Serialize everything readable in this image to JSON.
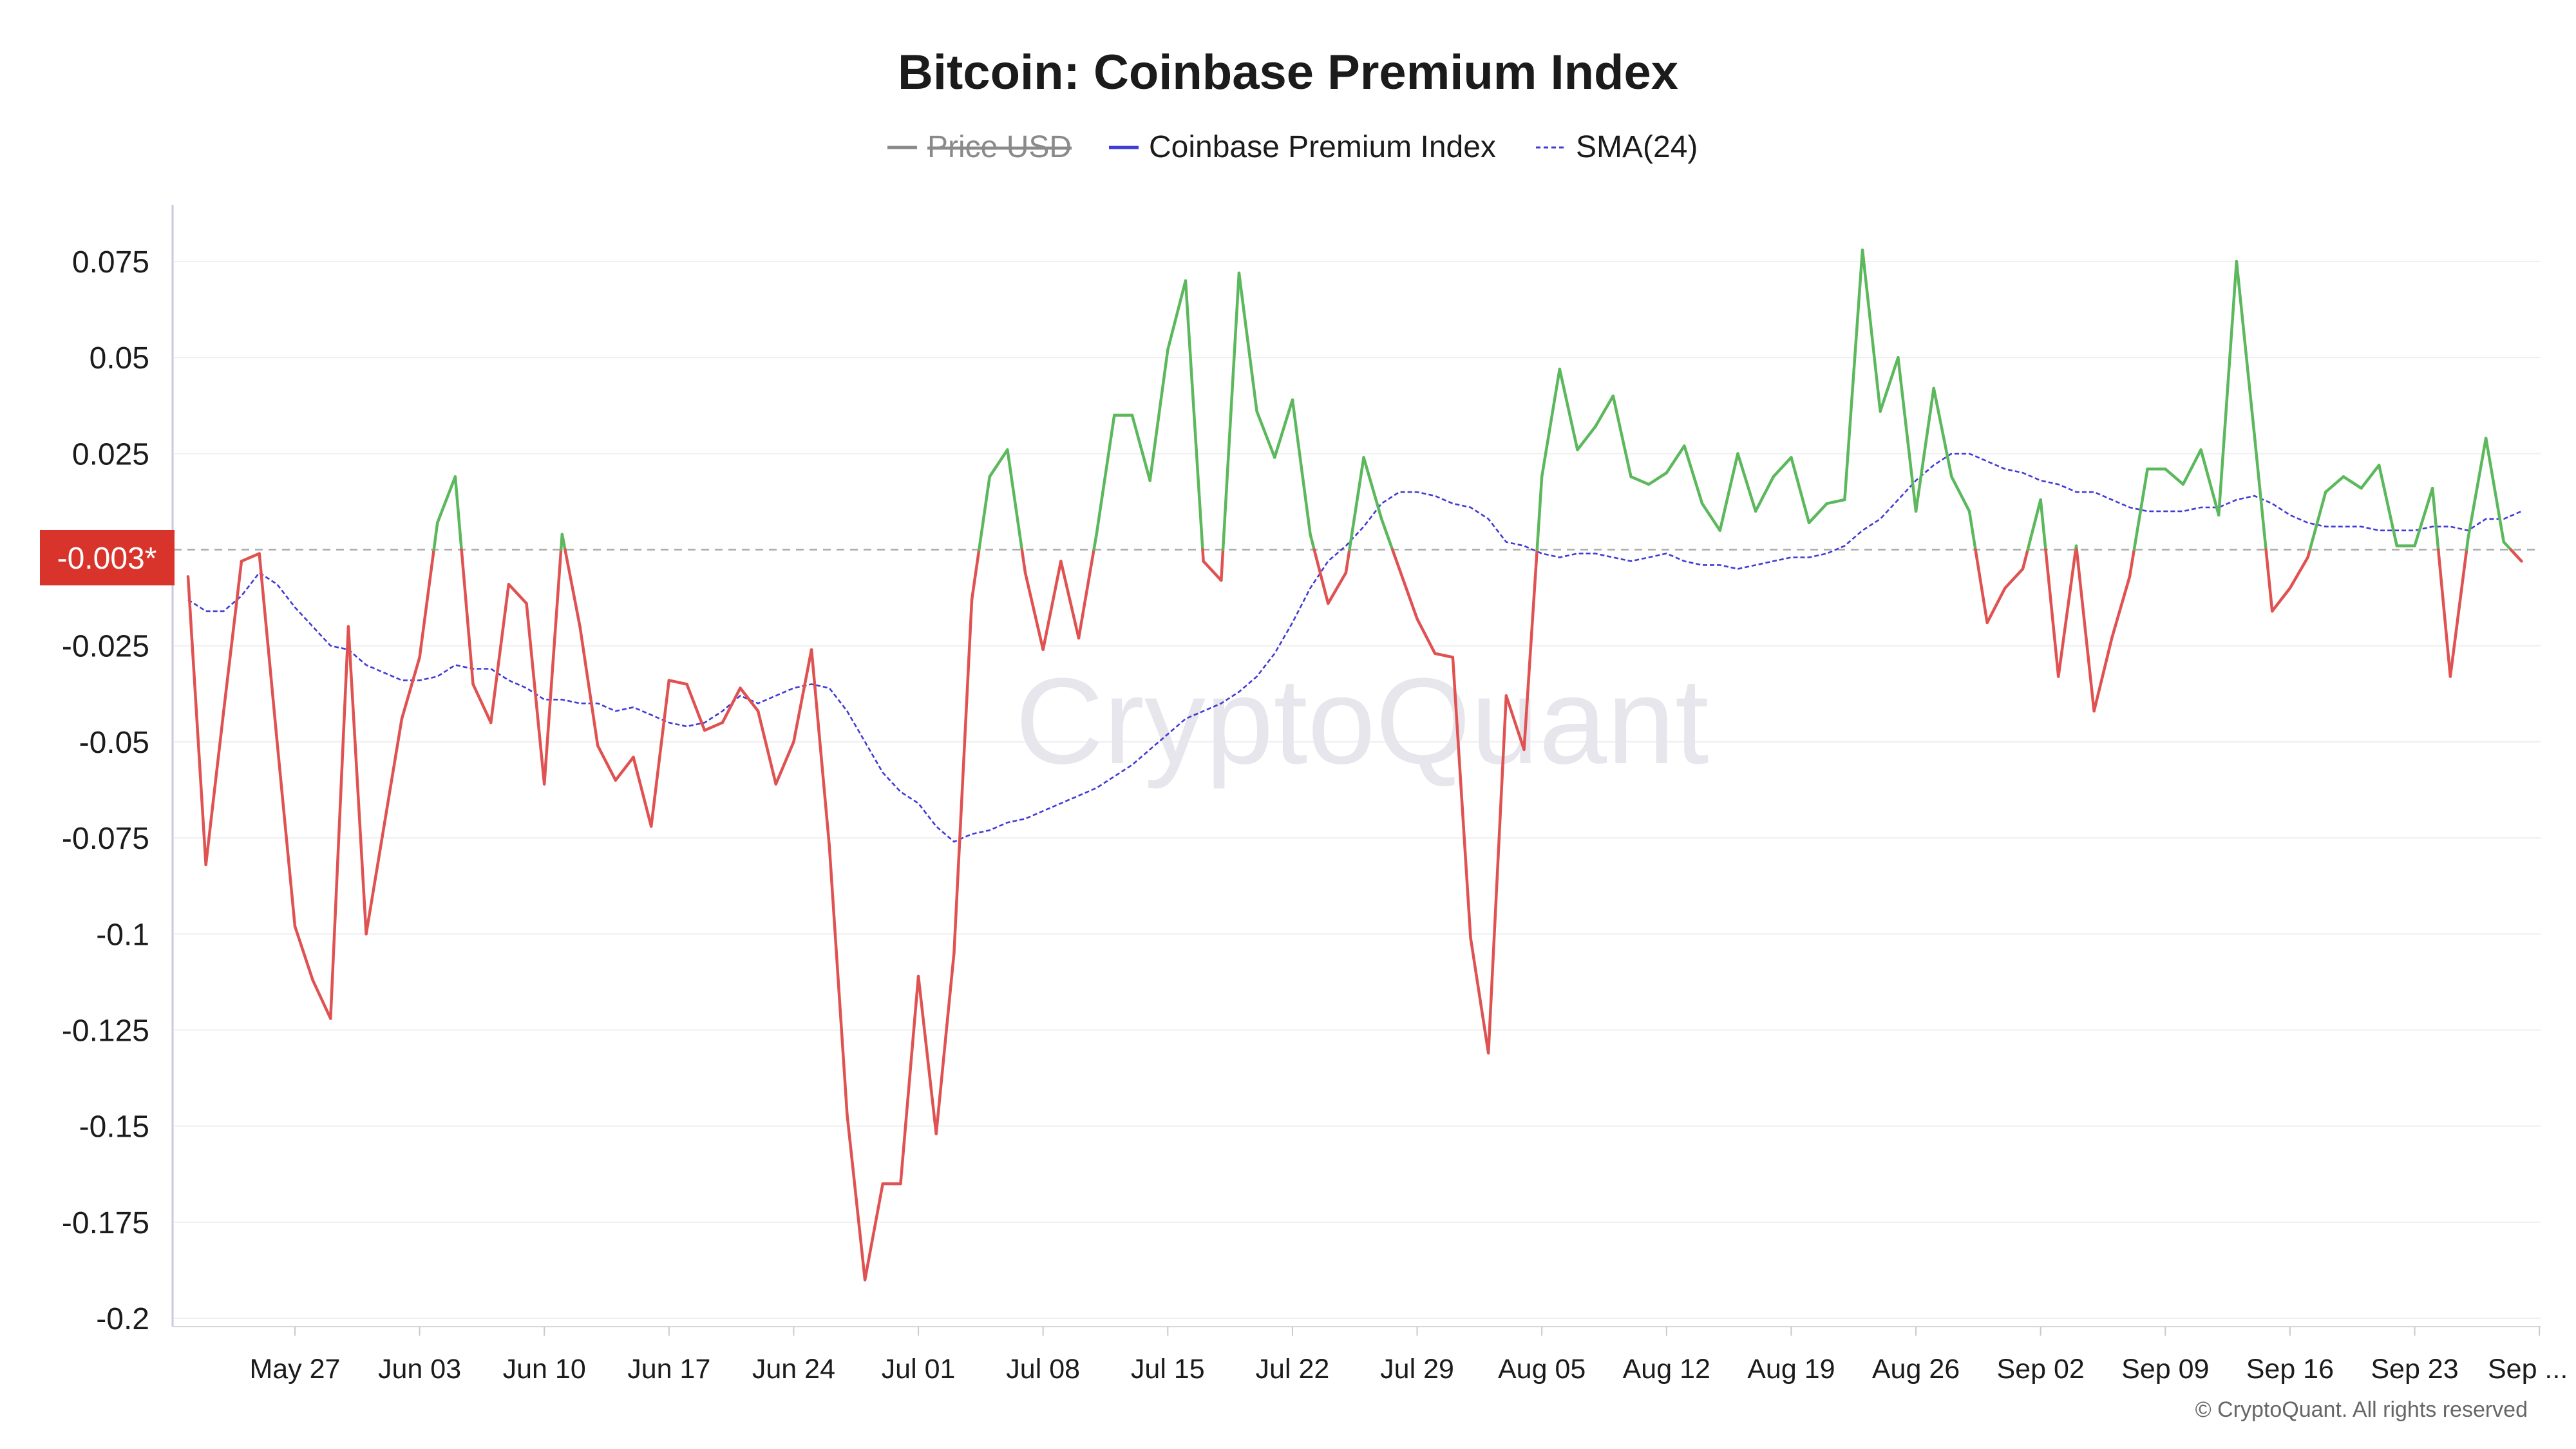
{
  "chart_data": {
    "type": "line",
    "title": "Bitcoin: Coinbase Premium Index",
    "legend": {
      "placement": "top-center",
      "items": [
        {
          "name": "Price USD",
          "color": "#8a8a8a",
          "style": "solid",
          "hidden": true
        },
        {
          "name": "Coinbase Premium Index",
          "color": "#3f3bd6",
          "style": "solid",
          "hidden": false
        },
        {
          "name": "SMA(24)",
          "color": "#3f3bd6",
          "style": "dashed",
          "hidden": false
        }
      ]
    },
    "y_ticks": [
      "0.075",
      "0.05",
      "0.025",
      "-0.025",
      "-0.05",
      "-0.075",
      "-0.1",
      "-0.125",
      "-0.15",
      "-0.175",
      "-0.2"
    ],
    "x_ticks": [
      "May 27",
      "Jun 03",
      "Jun 10",
      "Jun 17",
      "Jun 24",
      "Jul 01",
      "Jul 08",
      "Jul 15",
      "Jul 22",
      "Jul 29",
      "Aug 05",
      "Aug 12",
      "Aug 19",
      "Aug 26",
      "Sep 02",
      "Sep 09",
      "Sep 16",
      "Sep 23",
      "Sep ..."
    ],
    "ylim": [
      -0.2,
      0.075
    ],
    "current_value_label": "-0.003*",
    "grid": "horizontal",
    "watermark": "CryptoQuant",
    "copyright": "© CryptoQuant. All rights reserved",
    "colors": {
      "positive": "#5cb85c",
      "negative": "#e05252",
      "sma": "#3f3bd6",
      "badge": "#d9342b",
      "zero_line": "#aaaaaa"
    },
    "series": [
      {
        "name": "Coinbase Premium Index",
        "start_date": "2024-05-21",
        "values": [
          -0.007,
          -0.082,
          -0.042,
          -0.003,
          -0.001,
          -0.05,
          -0.098,
          -0.112,
          -0.122,
          -0.02,
          -0.1,
          -0.072,
          -0.044,
          -0.028,
          0.007,
          0.019,
          -0.035,
          -0.045,
          -0.009,
          -0.014,
          -0.061,
          0.004,
          -0.02,
          -0.051,
          -0.06,
          -0.054,
          -0.072,
          -0.034,
          -0.035,
          -0.047,
          -0.045,
          -0.036,
          -0.042,
          -0.061,
          -0.05,
          -0.026,
          -0.077,
          -0.147,
          -0.19,
          -0.165,
          -0.165,
          -0.111,
          -0.152,
          -0.105,
          -0.013,
          0.019,
          0.026,
          -0.006,
          -0.026,
          -0.003,
          -0.023,
          0.004,
          0.035,
          0.035,
          0.018,
          0.052,
          0.07,
          -0.003,
          -0.008,
          0.072,
          0.036,
          0.024,
          0.039,
          0.004,
          -0.014,
          -0.006,
          0.024,
          0.008,
          -0.005,
          -0.018,
          -0.027,
          -0.028,
          -0.101,
          -0.131,
          -0.038,
          -0.052,
          0.019,
          0.047,
          0.026,
          0.032,
          0.04,
          0.019,
          0.017,
          0.02,
          0.027,
          0.012,
          0.005,
          0.025,
          0.01,
          0.019,
          0.024,
          0.007,
          0.012,
          0.013,
          0.078,
          0.036,
          0.05,
          0.01,
          0.042,
          0.019,
          0.01,
          -0.019,
          -0.01,
          -0.005,
          0.013,
          -0.033,
          0.001,
          -0.042,
          -0.023,
          -0.007,
          0.021,
          0.021,
          0.017,
          0.026,
          0.009,
          0.075,
          0.03,
          -0.016,
          -0.01,
          -0.002,
          0.015,
          0.019,
          0.016,
          0.022,
          0.001,
          0.001,
          0.016,
          -0.033,
          0.003,
          0.029,
          0.002,
          -0.003
        ]
      },
      {
        "name": "SMA(24)",
        "start_date": "2024-05-21",
        "values": [
          -0.013,
          -0.016,
          -0.016,
          -0.012,
          -0.006,
          -0.009,
          -0.015,
          -0.02,
          -0.025,
          -0.026,
          -0.03,
          -0.032,
          -0.034,
          -0.034,
          -0.033,
          -0.03,
          -0.031,
          -0.031,
          -0.034,
          -0.036,
          -0.039,
          -0.039,
          -0.04,
          -0.04,
          -0.042,
          -0.041,
          -0.043,
          -0.045,
          -0.046,
          -0.045,
          -0.042,
          -0.038,
          -0.04,
          -0.038,
          -0.036,
          -0.035,
          -0.036,
          -0.042,
          -0.05,
          -0.058,
          -0.063,
          -0.066,
          -0.072,
          -0.076,
          -0.074,
          -0.073,
          -0.071,
          -0.07,
          -0.068,
          -0.066,
          -0.064,
          -0.062,
          -0.059,
          -0.056,
          -0.052,
          -0.048,
          -0.044,
          -0.042,
          -0.04,
          -0.037,
          -0.033,
          -0.027,
          -0.019,
          -0.01,
          -0.003,
          0.001,
          0.006,
          0.012,
          0.015,
          0.015,
          0.014,
          0.012,
          0.011,
          0.008,
          0.002,
          0.001,
          -0.001,
          -0.002,
          -0.001,
          -0.001,
          -0.002,
          -0.003,
          -0.002,
          -0.001,
          -0.003,
          -0.004,
          -0.004,
          -0.005,
          -0.004,
          -0.003,
          -0.002,
          -0.002,
          -0.001,
          0.001,
          0.005,
          0.008,
          0.013,
          0.018,
          0.022,
          0.025,
          0.025,
          0.023,
          0.021,
          0.02,
          0.018,
          0.017,
          0.015,
          0.015,
          0.013,
          0.011,
          0.01,
          0.01,
          0.01,
          0.011,
          0.011,
          0.013,
          0.014,
          0.012,
          0.009,
          0.007,
          0.006,
          0.006,
          0.006,
          0.005,
          0.005,
          0.005,
          0.006,
          0.006,
          0.005,
          0.008,
          0.008,
          0.01
        ]
      }
    ]
  }
}
